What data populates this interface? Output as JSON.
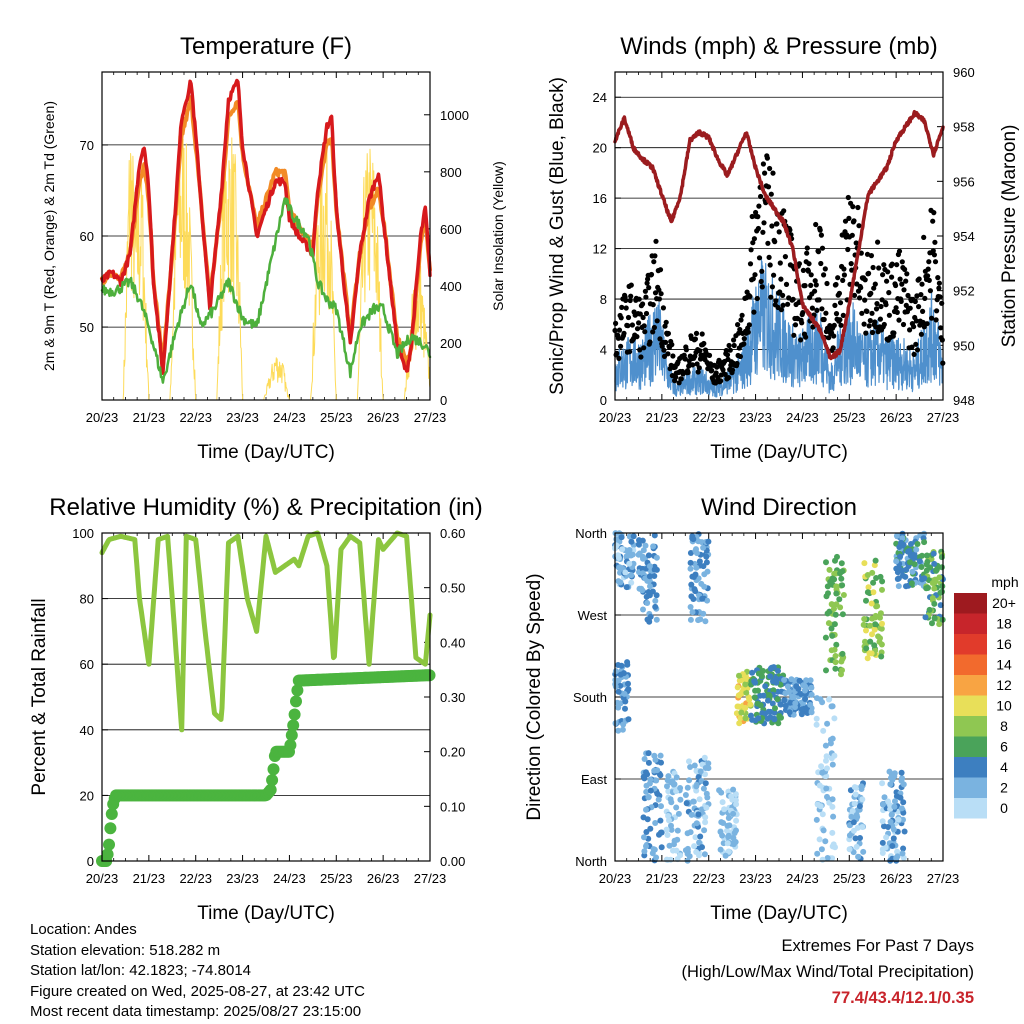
{
  "colors": {
    "temp_2m": "#d7191c",
    "temp_9m": "#f28b26",
    "dewpoint": "#4daf3c",
    "solar": "#fddb59",
    "wind_blue": "#4f90cd",
    "gust_black": "#000000",
    "pressure": "#9b1c1f",
    "rh": "#8cc63f",
    "precip": "#4bb43f",
    "extremes_text": "#c8242b"
  },
  "time_ticks": [
    "20/23",
    "21/23",
    "22/23",
    "23/23",
    "24/23",
    "25/23",
    "26/23",
    "27/23"
  ],
  "footer": {
    "location": "Location: Andes",
    "elevation": "Station elevation: 518.282 m",
    "latlon": "Station lat/lon: 42.1823; -74.8014",
    "created": "Figure created on Wed, 2025-08-27, at 23:42 UTC",
    "recent": "Most recent data timestamp: 2025/08/27 23:15:00",
    "extremes_title": "Extremes For Past 7 Days",
    "extremes_subtitle": "(High/Low/Max Wind/Total Precipitation)",
    "extremes_value": "77.4/43.4/12.1/0.35"
  },
  "chart_data": [
    {
      "type": "line",
      "title": "Temperature (F)",
      "xlabel": "Time (Day/UTC)",
      "ylabel": "2m & 9m T (Red, Orange) & 2m Td (Green)",
      "ylabel_right": "Solar Insolation (Yellow)",
      "x_unit": "days since 20/23",
      "xlim": [
        0,
        7
      ],
      "ylim": [
        42,
        78
      ],
      "ylim_right": [
        0,
        1150
      ],
      "y_ticks": [
        50,
        60,
        70
      ],
      "y_ticks_right": [
        0,
        200,
        400,
        600,
        800,
        1000
      ],
      "grid": true,
      "series": [
        {
          "name": "2m T",
          "axis": "left",
          "x": [
            0,
            0.2,
            0.4,
            0.6,
            0.8,
            0.9,
            1.0,
            1.1,
            1.3,
            1.55,
            1.7,
            1.9,
            2.0,
            2.3,
            2.55,
            2.7,
            2.9,
            3.0,
            3.3,
            3.5,
            3.7,
            3.9,
            4.0,
            4.2,
            4.5,
            4.6,
            4.8,
            4.9,
            5.0,
            5.3,
            5.5,
            5.7,
            5.9,
            6.0,
            6.3,
            6.5,
            6.6,
            6.8,
            6.9,
            7.0
          ],
          "values": [
            55,
            56,
            55,
            58,
            68,
            70,
            65,
            55,
            45,
            62,
            73,
            77,
            71,
            52,
            65,
            75,
            77,
            70,
            60,
            63,
            66,
            66,
            62,
            60,
            58,
            65,
            72,
            73,
            63,
            48,
            58,
            64,
            67,
            62,
            48,
            45,
            48,
            60,
            63,
            56
          ]
        },
        {
          "name": "9m T",
          "axis": "left",
          "x": [
            0,
            0.2,
            0.4,
            0.6,
            0.8,
            0.9,
            1.0,
            1.1,
            1.3,
            1.55,
            1.7,
            1.9,
            2.0,
            2.3,
            2.55,
            2.7,
            2.9,
            3.0,
            3.3,
            3.5,
            3.7,
            3.9,
            4.0,
            4.2,
            4.5,
            4.6,
            4.8,
            4.9,
            5.0,
            5.3,
            5.5,
            5.7,
            5.9,
            6.0,
            6.3,
            6.5,
            6.6,
            6.8,
            6.9,
            7.0
          ],
          "values": [
            55,
            56,
            55.5,
            58,
            66,
            68,
            64,
            55,
            46,
            61,
            71,
            75,
            70,
            53,
            64,
            73,
            75,
            69,
            61,
            64,
            67,
            67,
            63,
            61,
            59,
            64,
            70,
            71,
            63,
            49,
            58,
            63,
            65,
            62,
            49,
            46,
            48,
            59,
            62,
            56
          ]
        },
        {
          "name": "2m Td",
          "axis": "left",
          "x": [
            0,
            0.3,
            0.6,
            0.8,
            1.0,
            1.3,
            1.6,
            1.9,
            2.1,
            2.4,
            2.7,
            3.0,
            3.3,
            3.6,
            3.9,
            4.1,
            4.4,
            4.6,
            4.8,
            5.0,
            5.3,
            5.5,
            5.8,
            6.0,
            6.3,
            6.6,
            6.9,
            7.0
          ],
          "values": [
            54,
            54,
            55,
            53,
            50,
            44,
            50,
            55,
            50,
            52,
            55,
            51,
            50,
            57,
            64,
            62,
            60,
            55,
            53,
            52,
            45,
            50,
            52,
            52,
            47,
            49,
            48,
            47
          ]
        },
        {
          "name": "Solar",
          "axis": "right",
          "x": [
            0,
            0.45,
            0.6,
            0.72,
            0.85,
            0.95,
            1.0,
            1.45,
            1.6,
            1.75,
            1.85,
            1.95,
            2.0,
            2.45,
            2.6,
            2.75,
            2.85,
            2.95,
            3.0,
            3.45,
            3.7,
            3.85,
            3.95,
            4.0,
            4.45,
            4.6,
            4.75,
            4.85,
            4.95,
            5.0,
            5.45,
            5.6,
            5.75,
            5.85,
            5.95,
            6.0,
            6.45,
            6.65,
            6.8,
            6.9,
            7.0
          ],
          "values": [
            0,
            0,
            1100,
            700,
            900,
            300,
            0,
            0,
            950,
            1000,
            800,
            350,
            0,
            0,
            950,
            1000,
            850,
            400,
            0,
            0,
            180,
            150,
            40,
            0,
            0,
            700,
            950,
            900,
            300,
            0,
            0,
            850,
            950,
            800,
            300,
            0,
            0,
            450,
            500,
            300,
            100
          ]
        }
      ]
    },
    {
      "type": "line",
      "title": "Winds (mph) & Pressure (mb)",
      "xlabel": "Time (Day/UTC)",
      "ylabel": "Sonic/Prop Wind & Gust (Blue, Black)",
      "ylabel_right": "Station Pressure (Maroon)",
      "x_unit": "days since 20/23",
      "xlim": [
        0,
        7
      ],
      "ylim": [
        0,
        26
      ],
      "ylim_right": [
        948,
        960
      ],
      "y_ticks": [
        0,
        4,
        8,
        12,
        16,
        20,
        24
      ],
      "y_ticks_right": [
        948,
        950,
        952,
        954,
        956,
        958,
        960
      ],
      "grid": true,
      "series": [
        {
          "name": "Wind",
          "axis": "left",
          "x": [
            0,
            0.3,
            0.6,
            0.9,
            1.1,
            1.3,
            1.6,
            1.9,
            2.1,
            2.4,
            2.7,
            2.9,
            3.1,
            3.3,
            3.6,
            3.9,
            4.1,
            4.4,
            4.6,
            4.8,
            5.1,
            5.3,
            5.6,
            5.8,
            6.1,
            6.4,
            6.6,
            6.8,
            7.0
          ],
          "values": [
            3,
            4,
            4,
            7,
            3,
            1,
            2,
            2,
            1,
            2,
            3,
            6,
            9,
            8,
            6,
            4,
            5,
            6,
            2,
            5,
            6,
            4,
            5,
            4,
            4,
            3,
            5,
            7,
            3
          ]
        },
        {
          "name": "Gust",
          "axis": "left",
          "x": [
            0,
            0.3,
            0.6,
            0.9,
            1.1,
            1.3,
            1.6,
            1.9,
            2.1,
            2.4,
            2.7,
            2.9,
            3.1,
            3.3,
            3.6,
            3.9,
            4.1,
            4.4,
            4.6,
            4.8,
            5.1,
            5.3,
            5.6,
            5.8,
            6.1,
            6.4,
            6.6,
            6.8,
            7.0
          ],
          "values": [
            5,
            7,
            6,
            10,
            5,
            2,
            4,
            4,
            2,
            3,
            5,
            10,
            16,
            14,
            12,
            8,
            9,
            12,
            4,
            10,
            14,
            8,
            10,
            8,
            9,
            6,
            10,
            12,
            5
          ]
        },
        {
          "name": "Pressure",
          "axis": "right",
          "x": [
            0,
            0.2,
            0.4,
            0.6,
            0.8,
            1.0,
            1.2,
            1.4,
            1.6,
            1.8,
            2.0,
            2.2,
            2.4,
            2.6,
            2.8,
            3.0,
            3.2,
            3.4,
            3.6,
            3.8,
            4.0,
            4.2,
            4.4,
            4.6,
            4.8,
            5.0,
            5.2,
            5.4,
            5.6,
            5.8,
            6.0,
            6.2,
            6.4,
            6.6,
            6.8,
            7.0
          ],
          "values": [
            957.5,
            958.3,
            957.2,
            956.8,
            956.5,
            955.5,
            954.5,
            955.5,
            957.5,
            957.8,
            957.6,
            956.8,
            956.2,
            957.0,
            957.8,
            956.5,
            955.5,
            955.0,
            954.5,
            953.5,
            951.5,
            951.0,
            950.5,
            949.5,
            949.8,
            951.5,
            953.5,
            955.5,
            956.0,
            956.5,
            957.5,
            958.0,
            958.5,
            958.2,
            957.0,
            958.0
          ]
        }
      ]
    },
    {
      "type": "line",
      "title": "Relative Humidity (%) & Precipitation (in)",
      "xlabel": "Time (Day/UTC)",
      "ylabel": "Percent & Total Rainfall",
      "x_unit": "days since 20/23",
      "xlim": [
        0,
        7
      ],
      "ylim": [
        0,
        100
      ],
      "ylim_right": [
        0,
        0.6
      ],
      "y_ticks": [
        0,
        20,
        40,
        60,
        80,
        100
      ],
      "y_ticks_right": [
        0.0,
        0.1,
        0.2,
        0.3,
        0.4,
        0.5,
        0.6
      ],
      "y_ticks_right_labels": [
        "0.00",
        "0.10",
        "0.20",
        "0.30",
        "0.40",
        "0.50",
        "0.60"
      ],
      "grid": true,
      "series": [
        {
          "name": "RH",
          "axis": "left",
          "x": [
            0,
            0.15,
            0.4,
            0.7,
            0.8,
            1.0,
            1.2,
            1.4,
            1.5,
            1.7,
            1.8,
            2.0,
            2.2,
            2.4,
            2.55,
            2.7,
            2.9,
            3.1,
            3.3,
            3.5,
            3.7,
            3.9,
            4.1,
            4.2,
            4.4,
            4.6,
            4.8,
            4.95,
            5.1,
            5.3,
            5.5,
            5.7,
            5.9,
            6.0,
            6.3,
            6.5,
            6.7,
            6.9,
            7.0
          ],
          "values": [
            94,
            98,
            99,
            98,
            80,
            60,
            98,
            99,
            80,
            40,
            99,
            98,
            70,
            45,
            43,
            97,
            99,
            80,
            70,
            99,
            88,
            90,
            92,
            90,
            99,
            100,
            90,
            60,
            95,
            99,
            97,
            60,
            98,
            95,
            100,
            99,
            62,
            60,
            75
          ]
        },
        {
          "name": "Precip",
          "axis": "right",
          "x": [
            0,
            0.1,
            0.15,
            0.2,
            0.25,
            0.3,
            3.5,
            3.6,
            3.65,
            3.7,
            4.0,
            4.1,
            4.15,
            4.2,
            7.0
          ],
          "values": [
            0,
            0,
            0.03,
            0.08,
            0.11,
            0.12,
            0.12,
            0.13,
            0.16,
            0.2,
            0.2,
            0.26,
            0.3,
            0.33,
            0.34
          ]
        }
      ]
    },
    {
      "type": "scatter",
      "title": "Wind Direction",
      "xlabel": "Time (Day/UTC)",
      "ylabel": "Direction (Colored By Speed)",
      "x_unit": "days since 20/23",
      "xlim": [
        0,
        7
      ],
      "ylim": [
        0,
        360
      ],
      "y_ticks": [
        0,
        90,
        180,
        270,
        360
      ],
      "y_tick_labels": [
        "North",
        "East",
        "South",
        "West",
        "North"
      ],
      "grid": true,
      "legend": {
        "title": "mph",
        "labels": [
          "20+",
          "18",
          "16",
          "14",
          "12",
          "10",
          "8",
          "6",
          "4",
          "2",
          "0"
        ],
        "colors": [
          "#9e1a1f",
          "#c7252b",
          "#e13b2b",
          "#f26a2d",
          "#f8a443",
          "#e8df59",
          "#8fc752",
          "#4aa35a",
          "#3d7fc0",
          "#7ab3e0",
          "#b9def6"
        ],
        "placement": "right"
      },
      "clusters": [
        {
          "x": [
            0.0,
            0.4
          ],
          "dir": [
            300,
            360
          ],
          "speed": 2
        },
        {
          "x": [
            0.0,
            0.3
          ],
          "dir": [
            140,
            220
          ],
          "speed": 3
        },
        {
          "x": [
            0.5,
            0.9
          ],
          "dir": [
            260,
            360
          ],
          "speed": 3
        },
        {
          "x": [
            0.6,
            1.0
          ],
          "dir": [
            0,
            120
          ],
          "speed": 3
        },
        {
          "x": [
            1.1,
            1.4
          ],
          "dir": [
            0,
            100
          ],
          "speed": 1
        },
        {
          "x": [
            1.5,
            2.0
          ],
          "dir": [
            0,
            120
          ],
          "speed": 2
        },
        {
          "x": [
            1.6,
            2.0
          ],
          "dir": [
            260,
            360
          ],
          "speed": 3
        },
        {
          "x": [
            2.2,
            2.6
          ],
          "dir": [
            0,
            80
          ],
          "speed": 1
        },
        {
          "x": [
            2.6,
            2.9
          ],
          "dir": [
            150,
            210
          ],
          "speed": 10
        },
        {
          "x": [
            2.9,
            3.6
          ],
          "dir": [
            150,
            215
          ],
          "speed": 5
        },
        {
          "x": [
            3.6,
            4.2
          ],
          "dir": [
            160,
            200
          ],
          "speed": 3
        },
        {
          "x": [
            4.3,
            4.7
          ],
          "dir": [
            0,
            180
          ],
          "speed": 1
        },
        {
          "x": [
            4.5,
            4.9
          ],
          "dir": [
            200,
            340
          ],
          "speed": 7
        },
        {
          "x": [
            5.0,
            5.3
          ],
          "dir": [
            0,
            90
          ],
          "speed": 2
        },
        {
          "x": [
            5.3,
            5.7
          ],
          "dir": [
            220,
            330
          ],
          "speed": 8
        },
        {
          "x": [
            5.7,
            6.2
          ],
          "dir": [
            0,
            100
          ],
          "speed": 2
        },
        {
          "x": [
            6.0,
            6.6
          ],
          "dir": [
            300,
            360
          ],
          "speed": 4
        },
        {
          "x": [
            6.6,
            7.0
          ],
          "dir": [
            260,
            340
          ],
          "speed": 6
        }
      ]
    }
  ]
}
